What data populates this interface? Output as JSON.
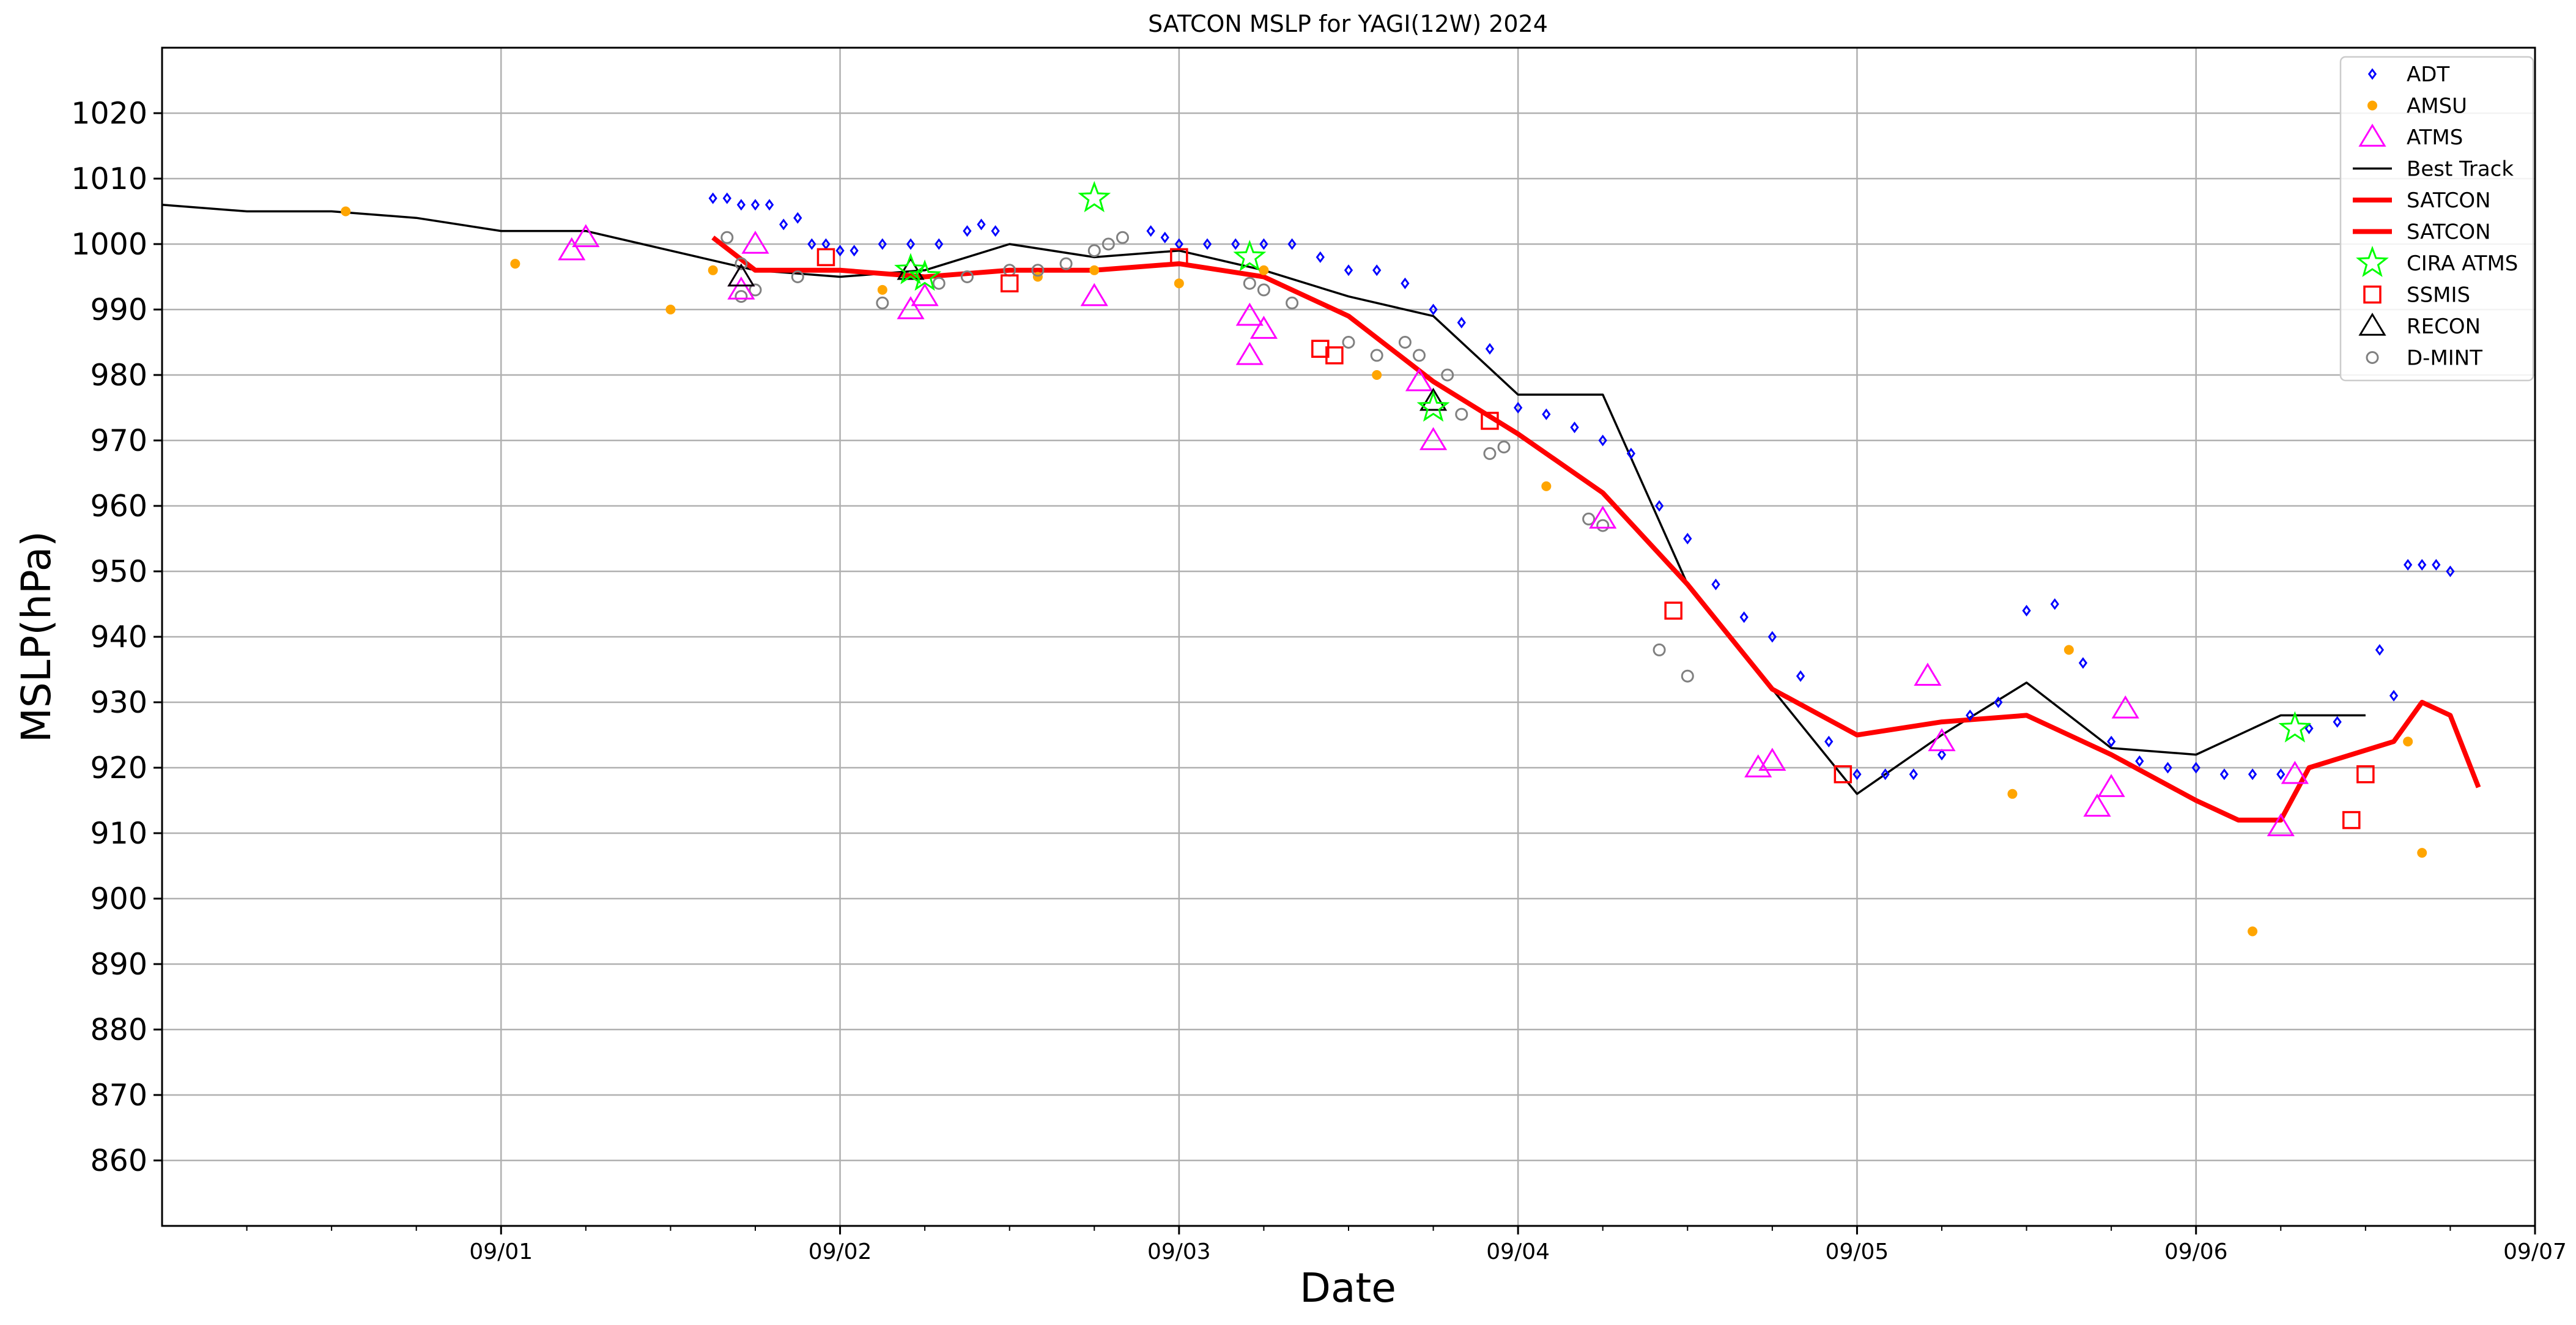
{
  "chart_data": {
    "type": "scatter",
    "title": "SATCON MSLP for YAGI(12W) 2024",
    "xlabel": "Date",
    "ylabel": "MSLP(hPa)",
    "xlim": [
      "2024-08-31T00:00",
      "2024-09-07T00:00"
    ],
    "ylim": [
      850,
      1030
    ],
    "x_ticks": [
      {
        "label": "09/01",
        "date": "2024-09-01T00:00"
      },
      {
        "label": "09/02",
        "date": "2024-09-02T00:00"
      },
      {
        "label": "09/03",
        "date": "2024-09-03T00:00"
      },
      {
        "label": "09/04",
        "date": "2024-09-04T00:00"
      },
      {
        "label": "09/05",
        "date": "2024-09-05T00:00"
      },
      {
        "label": "09/06",
        "date": "2024-09-06T00:00"
      },
      {
        "label": "09/07",
        "date": "2024-09-07T00:00"
      }
    ],
    "y_ticks": [
      860,
      870,
      880,
      890,
      900,
      910,
      920,
      930,
      940,
      950,
      960,
      970,
      980,
      990,
      1000,
      1010,
      1020
    ],
    "grid": true,
    "legend_position": "top-right",
    "series": [
      {
        "name": "ADT",
        "marker": "diamond",
        "color": "#0000ff",
        "points": [
          [
            "2024-09-01T15:00",
            1007
          ],
          [
            "2024-09-01T16:00",
            1007
          ],
          [
            "2024-09-01T17:00",
            1006
          ],
          [
            "2024-09-01T18:00",
            1006
          ],
          [
            "2024-09-01T19:00",
            1006
          ],
          [
            "2024-09-01T20:00",
            1003
          ],
          [
            "2024-09-01T21:00",
            1004
          ],
          [
            "2024-09-01T22:00",
            1000
          ],
          [
            "2024-09-01T23:00",
            1000
          ],
          [
            "2024-09-02T00:00",
            999
          ],
          [
            "2024-09-02T01:00",
            999
          ],
          [
            "2024-09-02T03:00",
            1000
          ],
          [
            "2024-09-02T05:00",
            1000
          ],
          [
            "2024-09-02T07:00",
            1000
          ],
          [
            "2024-09-02T09:00",
            1002
          ],
          [
            "2024-09-02T10:00",
            1003
          ],
          [
            "2024-09-02T11:00",
            1002
          ],
          [
            "2024-09-02T22:00",
            1002
          ],
          [
            "2024-09-02T23:00",
            1001
          ],
          [
            "2024-09-03T00:00",
            1000
          ],
          [
            "2024-09-03T02:00",
            1000
          ],
          [
            "2024-09-03T04:00",
            1000
          ],
          [
            "2024-09-03T06:00",
            1000
          ],
          [
            "2024-09-03T08:00",
            1000
          ],
          [
            "2024-09-03T10:00",
            998
          ],
          [
            "2024-09-03T12:00",
            996
          ],
          [
            "2024-09-03T14:00",
            996
          ],
          [
            "2024-09-03T16:00",
            994
          ],
          [
            "2024-09-03T18:00",
            990
          ],
          [
            "2024-09-03T20:00",
            988
          ],
          [
            "2024-09-03T22:00",
            984
          ],
          [
            "2024-09-04T00:00",
            975
          ],
          [
            "2024-09-04T02:00",
            974
          ],
          [
            "2024-09-04T04:00",
            972
          ],
          [
            "2024-09-04T06:00",
            970
          ],
          [
            "2024-09-04T08:00",
            968
          ],
          [
            "2024-09-04T10:00",
            960
          ],
          [
            "2024-09-04T12:00",
            955
          ],
          [
            "2024-09-04T14:00",
            948
          ],
          [
            "2024-09-04T16:00",
            943
          ],
          [
            "2024-09-04T18:00",
            940
          ],
          [
            "2024-09-04T20:00",
            934
          ],
          [
            "2024-09-04T22:00",
            924
          ],
          [
            "2024-09-05T00:00",
            919
          ],
          [
            "2024-09-05T02:00",
            919
          ],
          [
            "2024-09-05T04:00",
            919
          ],
          [
            "2024-09-05T06:00",
            922
          ],
          [
            "2024-09-05T08:00",
            928
          ],
          [
            "2024-09-05T10:00",
            930
          ],
          [
            "2024-09-05T12:00",
            944
          ],
          [
            "2024-09-05T14:00",
            945
          ],
          [
            "2024-09-05T16:00",
            936
          ],
          [
            "2024-09-05T18:00",
            924
          ],
          [
            "2024-09-05T20:00",
            921
          ],
          [
            "2024-09-05T22:00",
            920
          ],
          [
            "2024-09-06T00:00",
            920
          ],
          [
            "2024-09-06T02:00",
            919
          ],
          [
            "2024-09-06T04:00",
            919
          ],
          [
            "2024-09-06T06:00",
            919
          ],
          [
            "2024-09-06T08:00",
            926
          ],
          [
            "2024-09-06T10:00",
            927
          ],
          [
            "2024-09-06T13:00",
            938
          ],
          [
            "2024-09-06T14:00",
            931
          ],
          [
            "2024-09-06T15:00",
            951
          ],
          [
            "2024-09-06T16:00",
            951
          ],
          [
            "2024-09-06T17:00",
            951
          ],
          [
            "2024-09-06T18:00",
            950
          ]
        ]
      },
      {
        "name": "AMSU",
        "marker": "dot",
        "color": "#ffa500",
        "points": [
          [
            "2024-08-31T13:00",
            1005
          ],
          [
            "2024-09-01T01:00",
            997
          ],
          [
            "2024-09-01T12:00",
            990
          ],
          [
            "2024-09-01T15:00",
            996
          ],
          [
            "2024-09-02T03:00",
            993
          ],
          [
            "2024-09-02T14:00",
            995
          ],
          [
            "2024-09-02T18:00",
            996
          ],
          [
            "2024-09-03T00:00",
            994
          ],
          [
            "2024-09-03T06:00",
            996
          ],
          [
            "2024-09-03T14:00",
            980
          ],
          [
            "2024-09-04T02:00",
            963
          ],
          [
            "2024-09-05T11:00",
            916
          ],
          [
            "2024-09-05T15:00",
            938
          ],
          [
            "2024-09-06T04:00",
            895
          ],
          [
            "2024-09-06T15:00",
            924
          ],
          [
            "2024-09-06T16:00",
            907
          ]
        ]
      },
      {
        "name": "ATMS",
        "marker": "triangle-open",
        "color": "#ff00ff",
        "points": [
          [
            "2024-09-01T05:00",
            999
          ],
          [
            "2024-09-01T06:00",
            1001
          ],
          [
            "2024-09-01T17:00",
            993
          ],
          [
            "2024-09-01T17:00",
            995
          ],
          [
            "2024-09-01T18:00",
            1000
          ],
          [
            "2024-09-02T05:00",
            990
          ],
          [
            "2024-09-02T06:00",
            992
          ],
          [
            "2024-09-02T18:00",
            992
          ],
          [
            "2024-09-03T05:00",
            989
          ],
          [
            "2024-09-03T05:00",
            983
          ],
          [
            "2024-09-03T06:00",
            987
          ],
          [
            "2024-09-03T17:00",
            979
          ],
          [
            "2024-09-03T18:00",
            970
          ],
          [
            "2024-09-04T06:00",
            958
          ],
          [
            "2024-09-04T17:00",
            920
          ],
          [
            "2024-09-04T18:00",
            921
          ],
          [
            "2024-09-05T05:00",
            934
          ],
          [
            "2024-09-05T06:00",
            924
          ],
          [
            "2024-09-05T17:00",
            914
          ],
          [
            "2024-09-05T18:00",
            917
          ],
          [
            "2024-09-05T19:00",
            929
          ],
          [
            "2024-09-06T06:00",
            911
          ],
          [
            "2024-09-06T07:00",
            919
          ]
        ]
      },
      {
        "name": "Best Track",
        "marker": "line",
        "color": "#000000",
        "points": [
          [
            "2024-08-31T00:00",
            1006
          ],
          [
            "2024-08-31T06:00",
            1005
          ],
          [
            "2024-08-31T12:00",
            1005
          ],
          [
            "2024-08-31T18:00",
            1004
          ],
          [
            "2024-09-01T00:00",
            1002
          ],
          [
            "2024-09-01T06:00",
            1002
          ],
          [
            "2024-09-01T12:00",
            999
          ],
          [
            "2024-09-01T18:00",
            996
          ],
          [
            "2024-09-02T00:00",
            995
          ],
          [
            "2024-09-02T06:00",
            996
          ],
          [
            "2024-09-02T12:00",
            1000
          ],
          [
            "2024-09-02T18:00",
            998
          ],
          [
            "2024-09-03T00:00",
            999
          ],
          [
            "2024-09-03T06:00",
            996
          ],
          [
            "2024-09-03T12:00",
            992
          ],
          [
            "2024-09-03T18:00",
            989
          ],
          [
            "2024-09-04T00:00",
            977
          ],
          [
            "2024-09-04T06:00",
            977
          ],
          [
            "2024-09-04T12:00",
            948
          ],
          [
            "2024-09-04T18:00",
            932
          ],
          [
            "2024-09-05T00:00",
            916
          ],
          [
            "2024-09-05T06:00",
            925
          ],
          [
            "2024-09-05T12:00",
            933
          ],
          [
            "2024-09-05T18:00",
            923
          ],
          [
            "2024-09-06T00:00",
            922
          ],
          [
            "2024-09-06T06:00",
            928
          ],
          [
            "2024-09-06T12:00",
            928
          ]
        ]
      },
      {
        "name": "SATCON",
        "marker": "line",
        "color": "#ff0000",
        "points": [
          [
            "2024-09-01T15:00",
            1001
          ],
          [
            "2024-09-01T18:00",
            996
          ],
          [
            "2024-09-01T21:00",
            996
          ],
          [
            "2024-09-02T00:00",
            996
          ],
          [
            "2024-09-02T06:00",
            995
          ],
          [
            "2024-09-02T12:00",
            996
          ],
          [
            "2024-09-02T18:00",
            996
          ],
          [
            "2024-09-03T00:00",
            997
          ],
          [
            "2024-09-03T06:00",
            995
          ],
          [
            "2024-09-03T12:00",
            989
          ],
          [
            "2024-09-03T18:00",
            979
          ],
          [
            "2024-09-04T00:00",
            971
          ],
          [
            "2024-09-04T06:00",
            962
          ],
          [
            "2024-09-04T12:00",
            948
          ],
          [
            "2024-09-04T18:00",
            932
          ],
          [
            "2024-09-05T00:00",
            925
          ],
          [
            "2024-09-05T06:00",
            927
          ],
          [
            "2024-09-05T12:00",
            928
          ],
          [
            "2024-09-05T18:00",
            922
          ],
          [
            "2024-09-06T00:00",
            915
          ],
          [
            "2024-09-06T03:00",
            912
          ],
          [
            "2024-09-06T06:00",
            912
          ],
          [
            "2024-09-06T08:00",
            920
          ],
          [
            "2024-09-06T14:00",
            924
          ],
          [
            "2024-09-06T16:00",
            930
          ],
          [
            "2024-09-06T18:00",
            928
          ],
          [
            "2024-09-06T20:00",
            917
          ]
        ]
      },
      {
        "name": "SATCON",
        "marker": "line",
        "color": "#ff0000",
        "points": []
      },
      {
        "name": "CIRA ATMS",
        "marker": "star-open",
        "color": "#00ff00",
        "points": [
          [
            "2024-09-02T05:00",
            996
          ],
          [
            "2024-09-02T06:00",
            995
          ],
          [
            "2024-09-02T18:00",
            1007
          ],
          [
            "2024-09-03T05:00",
            998
          ],
          [
            "2024-09-03T18:00",
            975
          ],
          [
            "2024-09-06T07:00",
            926
          ]
        ]
      },
      {
        "name": "SSMIS",
        "marker": "square-open",
        "color": "#ff0000",
        "points": [
          [
            "2024-09-01T23:00",
            998
          ],
          [
            "2024-09-02T12:00",
            994
          ],
          [
            "2024-09-03T00:00",
            998
          ],
          [
            "2024-09-03T10:00",
            984
          ],
          [
            "2024-09-03T11:00",
            983
          ],
          [
            "2024-09-03T22:00",
            973
          ],
          [
            "2024-09-04T11:00",
            944
          ],
          [
            "2024-09-04T23:00",
            919
          ],
          [
            "2024-09-06T11:00",
            912
          ],
          [
            "2024-09-06T12:00",
            919
          ]
        ]
      },
      {
        "name": "RECON",
        "marker": "triangle-open",
        "color": "#000000",
        "points": [
          [
            "2024-09-01T17:00",
            995
          ],
          [
            "2024-09-02T05:00",
            996
          ],
          [
            "2024-09-03T18:00",
            976
          ]
        ]
      },
      {
        "name": "D-MINT",
        "marker": "circle-open",
        "color": "#808080",
        "points": [
          [
            "2024-09-01T16:00",
            1001
          ],
          [
            "2024-09-01T17:00",
            992
          ],
          [
            "2024-09-01T17:00",
            997
          ],
          [
            "2024-09-01T18:00",
            993
          ],
          [
            "2024-09-01T21:00",
            995
          ],
          [
            "2024-09-02T03:00",
            991
          ],
          [
            "2024-09-02T07:00",
            994
          ],
          [
            "2024-09-02T09:00",
            995
          ],
          [
            "2024-09-02T12:00",
            996
          ],
          [
            "2024-09-02T14:00",
            996
          ],
          [
            "2024-09-02T16:00",
            997
          ],
          [
            "2024-09-02T18:00",
            999
          ],
          [
            "2024-09-02T19:00",
            1000
          ],
          [
            "2024-09-02T20:00",
            1001
          ],
          [
            "2024-09-03T05:00",
            994
          ],
          [
            "2024-09-03T06:00",
            993
          ],
          [
            "2024-09-03T08:00",
            991
          ],
          [
            "2024-09-03T12:00",
            985
          ],
          [
            "2024-09-03T14:00",
            983
          ],
          [
            "2024-09-03T16:00",
            985
          ],
          [
            "2024-09-03T17:00",
            983
          ],
          [
            "2024-09-03T19:00",
            980
          ],
          [
            "2024-09-03T20:00",
            974
          ],
          [
            "2024-09-03T22:00",
            968
          ],
          [
            "2024-09-03T23:00",
            969
          ],
          [
            "2024-09-04T05:00",
            958
          ],
          [
            "2024-09-04T06:00",
            957
          ],
          [
            "2024-09-04T10:00",
            938
          ],
          [
            "2024-09-04T12:00",
            934
          ]
        ]
      }
    ]
  }
}
